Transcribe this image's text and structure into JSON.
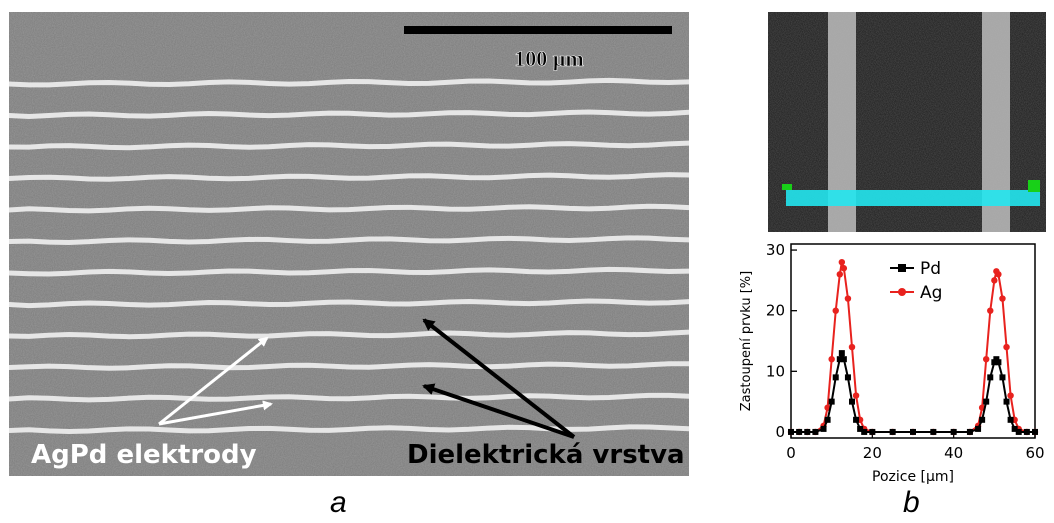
{
  "panel_a": {
    "scale_label": "100 µm",
    "electrode_label": "AgPd elektrody",
    "dielectric_label": "Dielektrická vrstva",
    "caption": "a"
  },
  "panel_b": {
    "caption": "b"
  },
  "chart_data": {
    "type": "line",
    "xlabel": "Pozice [µm]",
    "ylabel": "Zastoupení prvku [%]",
    "xlim": [
      0,
      60
    ],
    "ylim": [
      -1,
      31
    ],
    "xticks": [
      0,
      20,
      40,
      60
    ],
    "yticks": [
      0,
      10,
      20,
      30
    ],
    "legend_position": "top-right",
    "series": [
      {
        "name": "Pd",
        "color": "#000000",
        "marker": "square",
        "x": [
          0,
          2,
          4,
          6,
          8,
          9,
          10,
          11,
          12,
          12.5,
          13,
          14,
          15,
          16,
          17,
          18,
          20,
          25,
          30,
          35,
          40,
          44,
          46,
          47,
          48,
          49,
          50,
          50.5,
          51,
          52,
          53,
          54,
          55,
          56,
          58,
          60
        ],
        "y": [
          0,
          0,
          0,
          0,
          0.5,
          2,
          5,
          9,
          12,
          13,
          12,
          9,
          5,
          2,
          0.5,
          0,
          0,
          0,
          0,
          0,
          0,
          0,
          0.5,
          2,
          5,
          9,
          11.5,
          12,
          11.5,
          9,
          5,
          2,
          0.5,
          0,
          0,
          0
        ]
      },
      {
        "name": "Ag",
        "color": "#e8221e",
        "marker": "circle",
        "x": [
          0,
          2,
          4,
          6,
          8,
          9,
          10,
          11,
          12,
          12.5,
          13,
          14,
          15,
          16,
          17,
          18,
          20,
          25,
          30,
          35,
          40,
          44,
          46,
          47,
          48,
          49,
          50,
          50.5,
          51,
          52,
          53,
          54,
          55,
          56,
          58,
          60
        ],
        "y": [
          0,
          0,
          0,
          0,
          1,
          4,
          12,
          20,
          26,
          28,
          27,
          22,
          14,
          6,
          2,
          0.5,
          0,
          0,
          0,
          0,
          0,
          0,
          1,
          4,
          12,
          20,
          25,
          26.5,
          26,
          22,
          14,
          6,
          2,
          0.5,
          0,
          0
        ]
      }
    ]
  }
}
